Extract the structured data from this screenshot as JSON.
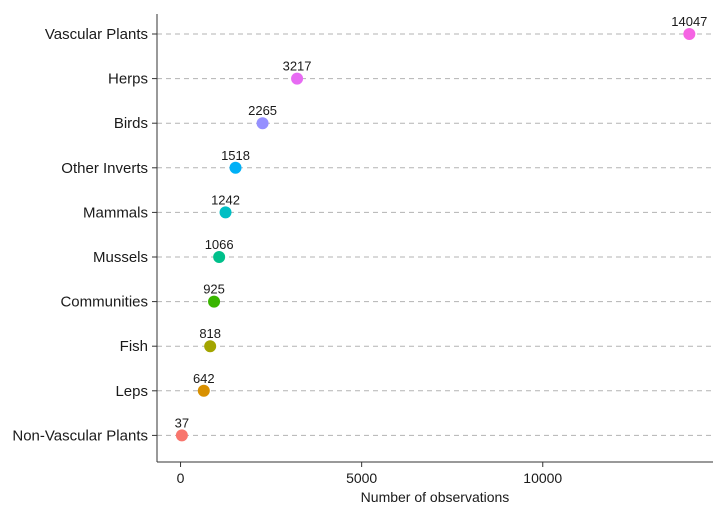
{
  "chart_data": {
    "type": "scatter",
    "title": "",
    "xlabel": "Number of observations",
    "ylabel": "",
    "xlim": [
      -650,
      14700
    ],
    "x_ticks": [
      0,
      5000,
      10000
    ],
    "x_tick_labels": [
      "0",
      "5000",
      "10000"
    ],
    "grid": "horizontal dashed",
    "legend": "none",
    "categories": [
      "Vascular Plants",
      "Herps",
      "Birds",
      "Other Inverts",
      "Mammals",
      "Mussels",
      "Communities",
      "Fish",
      "Leps",
      "Non-Vascular Plants"
    ],
    "values": [
      14047,
      3217,
      2265,
      1518,
      1242,
      1066,
      925,
      818,
      642,
      37
    ],
    "value_labels": [
      "14047",
      "3217",
      "2265",
      "1518",
      "1242",
      "1066",
      "925",
      "818",
      "642",
      "37"
    ],
    "colors": [
      "#F564E3",
      "#E76BF3",
      "#9590FF",
      "#00B0F6",
      "#00BFC4",
      "#00C08B",
      "#39B600",
      "#A3A500",
      "#D89000",
      "#F8766D"
    ]
  }
}
